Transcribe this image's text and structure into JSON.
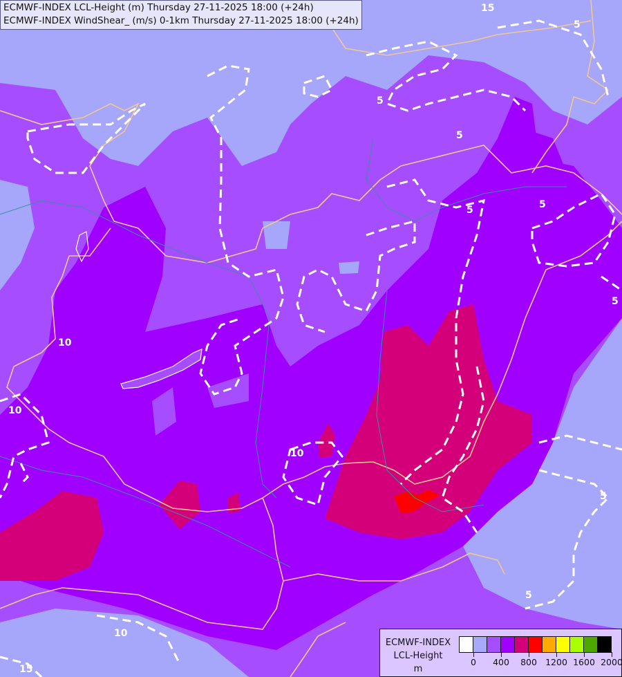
{
  "titles": [
    "ECMWF-INDEX LCL-Height (m) Thursday 27-11-2025 18:00 (+24h)",
    "ECMWF-INDEX WindShear_ (m/s) 0-1km Thursday 27-11-2025 18:00 (+24h)"
  ],
  "legend": {
    "title_lines": [
      "ECMWF-INDEX",
      "LCL-Height",
      "m"
    ],
    "colors": [
      "#ffffff",
      "#a8a8f8",
      "#a64dff",
      "#a000ff",
      "#d4007a",
      "#ff0000",
      "#ffaa00",
      "#ffff00",
      "#aaff00",
      "#4ca800",
      "#000000"
    ],
    "tick_labels": [
      "0",
      "400",
      "800",
      "1200",
      "1600",
      "2000"
    ]
  },
  "map": {
    "fill_colors": {
      "light": "#a6a6fa",
      "medium": "#a64dff",
      "vivid": "#a000ff",
      "magenta": "#d4007a",
      "red": "#ff0000",
      "lightgrey": "#d8d8f8"
    },
    "border_color": "#f0c890",
    "river_color": "#3c8ca0",
    "contour_color": "#ffffff",
    "contour_labels": [
      "15",
      "5",
      "5",
      "5",
      "5",
      "5",
      "5",
      "10",
      "10",
      "10",
      "5",
      "5",
      "10",
      "15"
    ]
  }
}
